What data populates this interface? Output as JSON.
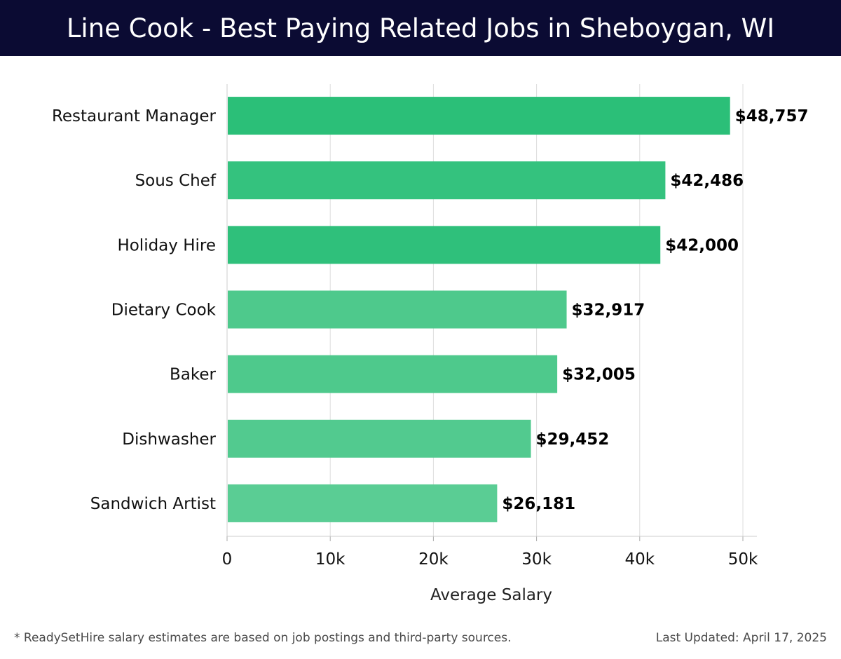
{
  "header": {
    "title": "Line Cook - Best Paying Related Jobs in Sheboygan, WI"
  },
  "chart_data": {
    "type": "bar",
    "orientation": "horizontal",
    "title": "Line Cook - Best Paying Related Jobs in Sheboygan, WI",
    "xlabel": "Average Salary",
    "ylabel": "",
    "xlim": [
      0,
      50000
    ],
    "x_ticks": [
      0,
      10000,
      20000,
      30000,
      40000,
      50000
    ],
    "x_tick_labels": [
      "0",
      "10k",
      "20k",
      "30k",
      "40k",
      "50k"
    ],
    "grid": true,
    "categories": [
      "Restaurant Manager",
      "Sous Chef",
      "Holiday Hire",
      "Dietary Cook",
      "Baker",
      "Dishwasher",
      "Sandwich Artist"
    ],
    "values": [
      48757,
      42486,
      42000,
      32917,
      32005,
      29452,
      26181
    ],
    "value_labels": [
      "$48,757",
      "$42,486",
      "$42,000",
      "$32,917",
      "$32,005",
      "$29,452",
      "$26,181"
    ],
    "bar_colors": [
      "#2bbf78",
      "#34c27e",
      "#2fc07b",
      "#4ec98c",
      "#4ec98c",
      "#52ca8f",
      "#5acd94"
    ]
  },
  "footer": {
    "note": "* ReadySetHire salary estimates are based on job postings and third-party sources.",
    "updated": "Last Updated: April 17, 2025"
  }
}
